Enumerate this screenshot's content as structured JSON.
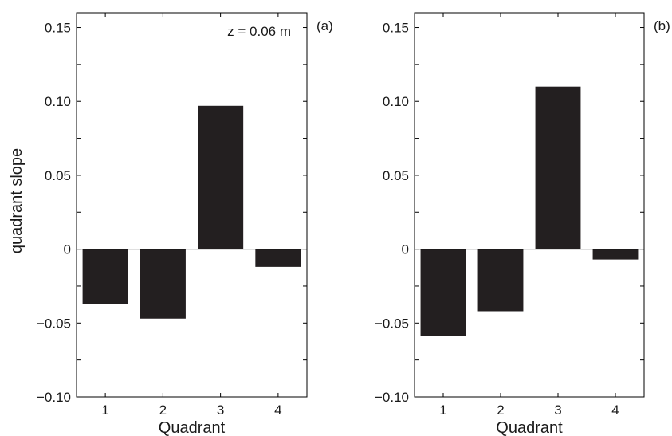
{
  "chart_data": [
    {
      "type": "bar",
      "panel_label": "(a)",
      "annotation": "z = 0.06 m",
      "categories": [
        "1",
        "2",
        "3",
        "4"
      ],
      "values": [
        -0.037,
        -0.047,
        0.097,
        -0.012
      ],
      "xlabel": "Quadrant",
      "ylabel": "quadrant slope",
      "ylim": [
        -0.1,
        0.16
      ],
      "yticks": [
        "0.15",
        "0.10",
        "0.05",
        "0",
        "−0.05",
        "−0.10"
      ],
      "ytick_values": [
        0.15,
        0.1,
        0.05,
        0,
        -0.05,
        -0.1
      ],
      "bar_color": "#231f20",
      "grid": false
    },
    {
      "type": "bar",
      "panel_label": "(b)",
      "annotation": "",
      "categories": [
        "1",
        "2",
        "3",
        "4"
      ],
      "values": [
        -0.059,
        -0.042,
        0.11,
        -0.007
      ],
      "xlabel": "Quadrant",
      "ylabel": "",
      "ylim": [
        -0.1,
        0.16
      ],
      "yticks": [
        "0.15",
        "0.10",
        "0.05",
        "0",
        "−0.05",
        "−0.10"
      ],
      "ytick_values": [
        0.15,
        0.1,
        0.05,
        0,
        -0.05,
        -0.1
      ],
      "bar_color": "#231f20",
      "grid": false
    }
  ]
}
